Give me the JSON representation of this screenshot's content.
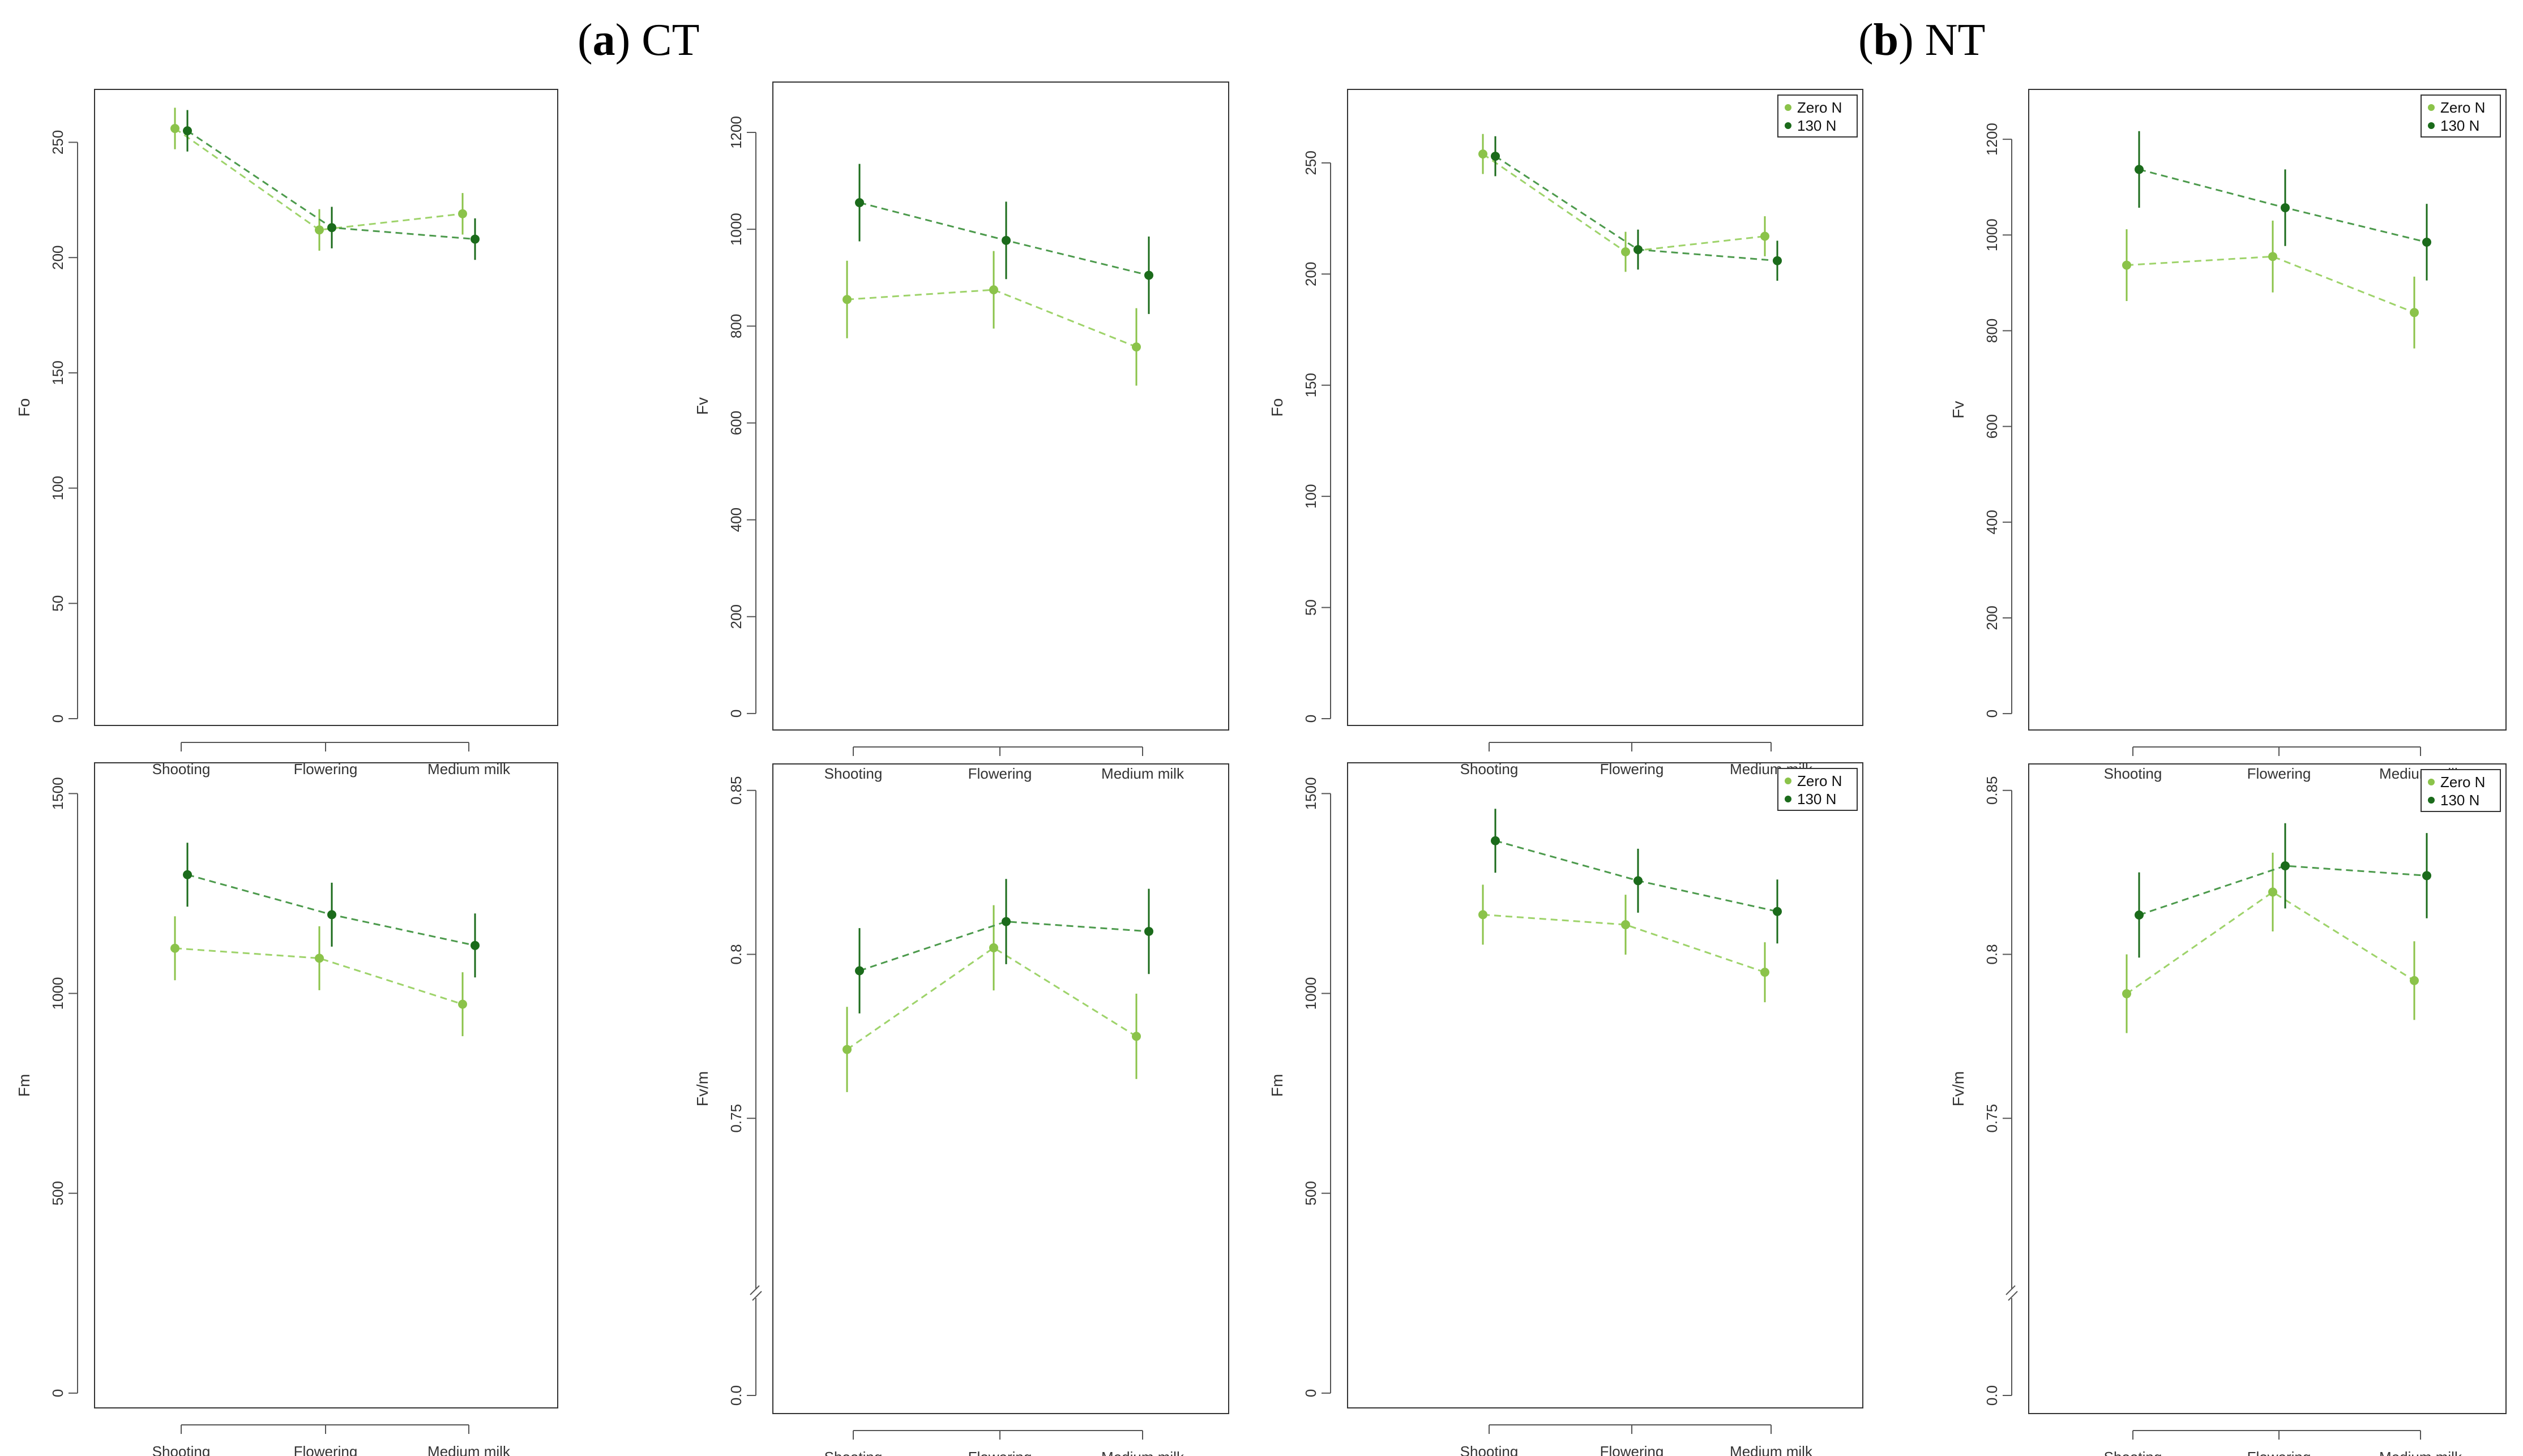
{
  "figure": {
    "panel_a_letter": "a",
    "panel_a_name": "CT",
    "panel_b_letter": "b",
    "panel_b_name": "NT"
  },
  "colors": {
    "zero_n": "#8bc34a",
    "n130": "#1b6b1b",
    "zero_n_line": "#9ed36a",
    "n130_line": "#4c9a4c",
    "axis": "#555555",
    "box": "#333333"
  },
  "chart_data": [
    {
      "type": "line",
      "group": "CT",
      "ylabel": "Fo",
      "categories": [
        "Shooting",
        "Flowering",
        "Medium milk"
      ],
      "ylim": [
        0,
        270
      ],
      "yticks": [
        0,
        50,
        100,
        150,
        200,
        250
      ],
      "ytick_labels": [
        "0",
        "50",
        "100",
        "150",
        "200",
        "250"
      ],
      "axis_break": false,
      "legend": null,
      "series": [
        {
          "name": "Zero N",
          "values": [
            256,
            212,
            219
          ],
          "err": [
            9,
            9,
            9
          ]
        },
        {
          "name": "130 N",
          "values": [
            255,
            213,
            208
          ],
          "err": [
            9,
            9,
            9
          ]
        }
      ]
    },
    {
      "type": "line",
      "group": "CT",
      "ylabel": "Fv",
      "categories": [
        "Shooting",
        "Flowering",
        "Medium milk"
      ],
      "ylim": [
        -20,
        1290
      ],
      "yticks": [
        0,
        200,
        400,
        600,
        800,
        1000,
        1200
      ],
      "ytick_labels": [
        "0",
        "200",
        "400",
        "600",
        "800",
        "1000",
        "1200"
      ],
      "axis_break": false,
      "legend": null,
      "series": [
        {
          "name": "Zero N",
          "values": [
            855,
            875,
            757
          ],
          "err": [
            80,
            80,
            80
          ]
        },
        {
          "name": "130 N",
          "values": [
            1055,
            977,
            905
          ],
          "err": [
            80,
            80,
            80
          ]
        }
      ]
    },
    {
      "type": "line",
      "group": "NT",
      "ylabel": "Fo",
      "categories": [
        "Shooting",
        "Flowering",
        "Medium milk"
      ],
      "ylim": [
        0,
        280
      ],
      "yticks": [
        0,
        50,
        100,
        150,
        200,
        250
      ],
      "ytick_labels": [
        "0",
        "50",
        "100",
        "150",
        "200",
        "250"
      ],
      "axis_break": false,
      "legend": [
        "Zero N",
        "130 N"
      ],
      "series": [
        {
          "name": "Zero N",
          "values": [
            254,
            210,
            217
          ],
          "err": [
            9,
            9,
            9
          ]
        },
        {
          "name": "130 N",
          "values": [
            253,
            211,
            206
          ],
          "err": [
            9,
            9,
            9
          ]
        }
      ]
    },
    {
      "type": "line",
      "group": "NT",
      "ylabel": "Fv",
      "categories": [
        "Shooting",
        "Flowering",
        "Medium milk"
      ],
      "ylim": [
        -20,
        1290
      ],
      "yticks": [
        0,
        200,
        400,
        600,
        800,
        1000,
        1200
      ],
      "ytick_labels": [
        "0",
        "200",
        "400",
        "600",
        "800",
        "1000",
        "1200"
      ],
      "axis_break": false,
      "legend": [
        "Zero N",
        "130 N"
      ],
      "series": [
        {
          "name": "Zero N",
          "values": [
            937,
            955,
            838
          ],
          "err": [
            75,
            75,
            75
          ]
        },
        {
          "name": "130 N",
          "values": [
            1137,
            1057,
            985
          ],
          "err": [
            80,
            80,
            80
          ]
        }
      ]
    },
    {
      "type": "line",
      "group": "CT",
      "ylabel": "Fm",
      "categories": [
        "Shooting",
        "Flowering",
        "Medium milk"
      ],
      "ylim": [
        -20,
        1560
      ],
      "yticks": [
        0,
        500,
        1000,
        1500
      ],
      "ytick_labels": [
        "0",
        "500",
        "1000",
        "1500"
      ],
      "axis_break": false,
      "legend": null,
      "series": [
        {
          "name": "Zero N",
          "values": [
            1113,
            1088,
            973
          ],
          "err": [
            80,
            80,
            80
          ]
        },
        {
          "name": "130 N",
          "values": [
            1297,
            1197,
            1120
          ],
          "err": [
            80,
            80,
            80
          ]
        }
      ]
    },
    {
      "type": "line",
      "group": "CT",
      "ylabel": "Fv/m",
      "categories": [
        "Shooting",
        "Flowering",
        "Medium milk"
      ],
      "ylim": [
        0.7,
        0.856
      ],
      "yticks": [
        0.0,
        0.75,
        0.8,
        0.85
      ],
      "ytick_labels": [
        "0.0",
        "0.75",
        "0.8",
        "0.85"
      ],
      "axis_break": true,
      "legend": null,
      "series": [
        {
          "name": "Zero N",
          "values": [
            0.771,
            0.802,
            0.775
          ],
          "err": [
            0.013,
            0.013,
            0.013
          ]
        },
        {
          "name": "130 N",
          "values": [
            0.795,
            0.81,
            0.807
          ],
          "err": [
            0.013,
            0.013,
            0.013
          ]
        }
      ]
    },
    {
      "type": "line",
      "group": "NT",
      "ylabel": "Fm",
      "categories": [
        "Shooting",
        "Flowering",
        "Medium milk"
      ],
      "ylim": [
        -20,
        1560
      ],
      "yticks": [
        0,
        500,
        1000,
        1500
      ],
      "ytick_labels": [
        "0",
        "500",
        "1000",
        "1500"
      ],
      "axis_break": false,
      "legend": [
        "Zero N",
        "130 N"
      ],
      "series": [
        {
          "name": "Zero N",
          "values": [
            1197,
            1172,
            1053
          ],
          "err": [
            75,
            75,
            75
          ]
        },
        {
          "name": "130 N",
          "values": [
            1382,
            1282,
            1205
          ],
          "err": [
            80,
            80,
            80
          ]
        }
      ]
    },
    {
      "type": "line",
      "group": "NT",
      "ylabel": "Fv/m",
      "categories": [
        "Shooting",
        "Flowering",
        "Medium milk"
      ],
      "ylim": [
        0.7,
        0.856
      ],
      "yticks": [
        0.0,
        0.75,
        0.8,
        0.85
      ],
      "ytick_labels": [
        "0.0",
        "0.75",
        "0.8",
        "0.85"
      ],
      "axis_break": true,
      "legend": [
        "Zero N",
        "130 N"
      ],
      "series": [
        {
          "name": "Zero N",
          "values": [
            0.788,
            0.819,
            0.792
          ],
          "err": [
            0.012,
            0.012,
            0.012
          ]
        },
        {
          "name": "130 N",
          "values": [
            0.812,
            0.827,
            0.824
          ],
          "err": [
            0.013,
            0.013,
            0.013
          ]
        }
      ]
    }
  ]
}
